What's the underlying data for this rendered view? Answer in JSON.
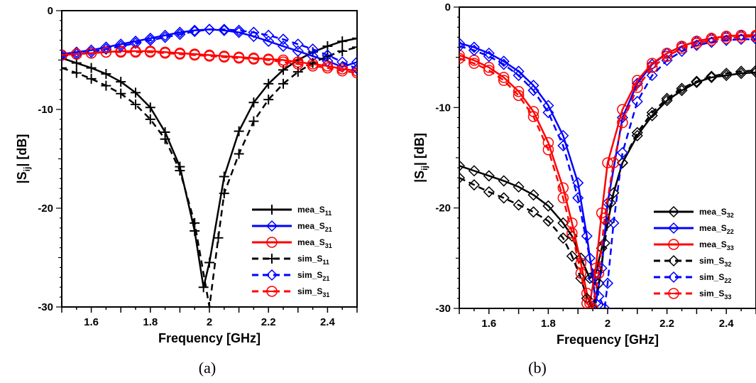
{
  "chart_data": [
    {
      "type": "line",
      "panel": "a",
      "xlabel": "Frequency [GHz]",
      "ylabel": "|S",
      "ylabel_sub": "ij",
      "ylabel_tail": "| [dB]",
      "xlim": [
        1.5,
        2.5
      ],
      "ylim": [
        -30,
        0
      ],
      "xticks": [
        1.6,
        1.8,
        2,
        2.2,
        2.4
      ],
      "xtick_labels": [
        "1.6",
        "1.8",
        "2",
        "2.2",
        "2.4"
      ],
      "yticks": [
        0,
        -10,
        -20,
        -30
      ],
      "ytick_labels": [
        "0",
        "-10",
        "-20",
        "-30"
      ],
      "grid": false,
      "legend_position": "bottom-right",
      "caption": "(a)",
      "series": [
        {
          "name": "mea_S",
          "sub": "11",
          "color": "#000000",
          "dash": "solid",
          "marker": "plus",
          "x": [
            1.5,
            1.55,
            1.6,
            1.65,
            1.7,
            1.75,
            1.8,
            1.85,
            1.9,
            1.95,
            1.98,
            2.0,
            2.05,
            2.1,
            2.15,
            2.2,
            2.25,
            2.3,
            2.35,
            2.4,
            2.45,
            2.5
          ],
          "y": [
            -4.8,
            -5.3,
            -5.8,
            -6.4,
            -7.2,
            -8.3,
            -9.8,
            -12.3,
            -15.8,
            -22.3,
            -28.0,
            -25.5,
            -16.8,
            -12.2,
            -9.3,
            -7.4,
            -6.0,
            -5.0,
            -4.2,
            -3.6,
            -3.1,
            -2.8
          ]
        },
        {
          "name": "mea_S",
          "sub": "21",
          "color": "#0000ff",
          "dash": "solid",
          "marker": "diamond",
          "x": [
            1.5,
            1.55,
            1.6,
            1.65,
            1.7,
            1.75,
            1.8,
            1.85,
            1.9,
            1.95,
            2.0,
            2.05,
            2.1,
            2.15,
            2.2,
            2.25,
            2.3,
            2.35,
            2.4,
            2.45,
            2.5
          ],
          "y": [
            -4.4,
            -4.2,
            -4.0,
            -3.7,
            -3.4,
            -3.1,
            -2.8,
            -2.5,
            -2.2,
            -2.0,
            -1.9,
            -2.0,
            -2.2,
            -2.6,
            -3.1,
            -3.6,
            -4.1,
            -4.6,
            -5.1,
            -5.7,
            -5.2
          ]
        },
        {
          "name": "mea_S",
          "sub": "31",
          "color": "#ff0000",
          "dash": "solid",
          "marker": "circle",
          "x": [
            1.5,
            1.55,
            1.6,
            1.65,
            1.7,
            1.75,
            1.8,
            1.85,
            1.9,
            1.95,
            2.0,
            2.05,
            2.1,
            2.15,
            2.2,
            2.25,
            2.3,
            2.35,
            2.4,
            2.45,
            2.5
          ],
          "y": [
            -4.5,
            -4.4,
            -4.3,
            -4.2,
            -4.1,
            -4.1,
            -4.1,
            -4.2,
            -4.3,
            -4.4,
            -4.5,
            -4.6,
            -4.7,
            -4.8,
            -4.9,
            -5.0,
            -5.2,
            -5.4,
            -5.6,
            -5.9,
            -6.1
          ]
        },
        {
          "name": "sim_S",
          "sub": "11",
          "color": "#000000",
          "dash": "dashed",
          "marker": "plus",
          "x": [
            1.5,
            1.55,
            1.6,
            1.65,
            1.7,
            1.75,
            1.8,
            1.85,
            1.9,
            1.95,
            2.0,
            2.03,
            2.05,
            2.1,
            2.15,
            2.2,
            2.25,
            2.3,
            2.35,
            2.4,
            2.45,
            2.5
          ],
          "y": [
            -5.8,
            -6.3,
            -6.9,
            -7.6,
            -8.4,
            -9.5,
            -11.0,
            -13.0,
            -16.2,
            -21.5,
            -30.0,
            -23.0,
            -18.5,
            -14.5,
            -11.2,
            -9.0,
            -7.4,
            -6.2,
            -5.3,
            -4.6,
            -4.1,
            -3.7
          ]
        },
        {
          "name": "sim_S",
          "sub": "21",
          "color": "#0000ff",
          "dash": "dashed",
          "marker": "diamond",
          "x": [
            1.5,
            1.55,
            1.6,
            1.65,
            1.7,
            1.75,
            1.8,
            1.85,
            1.9,
            1.95,
            2.0,
            2.05,
            2.1,
            2.15,
            2.2,
            2.25,
            2.3,
            2.35,
            2.4,
            2.45,
            2.5
          ],
          "y": [
            -4.6,
            -4.4,
            -4.2,
            -3.9,
            -3.6,
            -3.3,
            -3.0,
            -2.7,
            -2.4,
            -2.1,
            -1.9,
            -1.9,
            -2.0,
            -2.2,
            -2.5,
            -2.9,
            -3.4,
            -3.9,
            -4.5,
            -5.2,
            -5.9
          ]
        },
        {
          "name": "sim_S",
          "sub": "31",
          "color": "#ff0000",
          "dash": "dashed",
          "marker": "circle-line",
          "x": [
            1.5,
            1.55,
            1.6,
            1.65,
            1.7,
            1.75,
            1.8,
            1.85,
            1.9,
            1.95,
            2.0,
            2.05,
            2.1,
            2.15,
            2.2,
            2.25,
            2.3,
            2.35,
            2.4,
            2.45,
            2.5
          ],
          "y": [
            -4.5,
            -4.4,
            -4.3,
            -4.2,
            -4.2,
            -4.2,
            -4.2,
            -4.3,
            -4.4,
            -4.5,
            -4.6,
            -4.7,
            -4.8,
            -4.9,
            -5.0,
            -5.2,
            -5.4,
            -5.6,
            -5.8,
            -6.1,
            -6.3
          ]
        }
      ]
    },
    {
      "type": "line",
      "panel": "b",
      "xlabel": "Frequency [GHz]",
      "ylabel": "|S",
      "ylabel_sub": "ij",
      "ylabel_tail": "| [dB]",
      "xlim": [
        1.5,
        2.5
      ],
      "ylim": [
        -30,
        0
      ],
      "xticks": [
        1.6,
        1.8,
        2,
        2.2,
        2.4
      ],
      "xtick_labels": [
        "1.6",
        "1.8",
        "2",
        "2.2",
        "2.4"
      ],
      "yticks": [
        0,
        -10,
        -20,
        -30
      ],
      "ytick_labels": [
        "0",
        "-10",
        "-20",
        "-30"
      ],
      "grid": false,
      "legend_position": "bottom-right",
      "caption": "(b)",
      "series": [
        {
          "name": "mea_S",
          "sub": "32",
          "color": "#000000",
          "dash": "solid",
          "marker": "diamond",
          "x": [
            1.5,
            1.55,
            1.6,
            1.65,
            1.7,
            1.75,
            1.8,
            1.85,
            1.88,
            1.91,
            1.94,
            1.96,
            1.98,
            2.0,
            2.02,
            2.05,
            2.1,
            2.15,
            2.2,
            2.25,
            2.3,
            2.35,
            2.4,
            2.45,
            2.5
          ],
          "y": [
            -15.8,
            -16.3,
            -16.8,
            -17.3,
            -17.9,
            -18.7,
            -19.8,
            -21.5,
            -22.8,
            -25.0,
            -27.0,
            -26.5,
            -24.0,
            -21.5,
            -18.5,
            -15.5,
            -12.8,
            -10.8,
            -9.3,
            -8.3,
            -7.5,
            -7.0,
            -6.8,
            -6.6,
            -6.5
          ]
        },
        {
          "name": "mea_S",
          "sub": "22",
          "color": "#0000ff",
          "dash": "solid",
          "marker": "diamond",
          "x": [
            1.5,
            1.55,
            1.6,
            1.65,
            1.7,
            1.75,
            1.8,
            1.85,
            1.9,
            1.93,
            1.95,
            1.96,
            1.98,
            2.0,
            2.05,
            2.1,
            2.15,
            2.2,
            2.25,
            2.3,
            2.35,
            2.4,
            2.45,
            2.5
          ],
          "y": [
            -3.6,
            -4.0,
            -4.6,
            -5.4,
            -6.4,
            -7.8,
            -9.8,
            -12.8,
            -17.5,
            -22.8,
            -27.0,
            -29.5,
            -26.0,
            -19.5,
            -11.0,
            -7.6,
            -5.7,
            -4.6,
            -3.9,
            -3.4,
            -3.1,
            -2.9,
            -2.8,
            -2.8
          ]
        },
        {
          "name": "mea_S",
          "sub": "33",
          "color": "#ff0000",
          "dash": "solid",
          "marker": "circle",
          "x": [
            1.5,
            1.55,
            1.6,
            1.65,
            1.7,
            1.75,
            1.8,
            1.85,
            1.88,
            1.91,
            1.93,
            1.94,
            1.96,
            1.98,
            2.0,
            2.05,
            2.1,
            2.15,
            2.2,
            2.25,
            2.3,
            2.35,
            2.4,
            2.45,
            2.5
          ],
          "y": [
            -4.8,
            -5.3,
            -6.0,
            -7.0,
            -8.4,
            -10.4,
            -13.5,
            -18.0,
            -21.5,
            -25.5,
            -28.5,
            -29.5,
            -26.0,
            -20.5,
            -15.5,
            -10.2,
            -7.3,
            -5.6,
            -4.6,
            -3.9,
            -3.4,
            -3.1,
            -2.9,
            -2.8,
            -2.8
          ]
        },
        {
          "name": "sim_S",
          "sub": "32",
          "color": "#000000",
          "dash": "dashed",
          "marker": "diamond",
          "x": [
            1.5,
            1.55,
            1.6,
            1.65,
            1.7,
            1.75,
            1.8,
            1.85,
            1.88,
            1.91,
            1.93,
            1.95,
            1.97,
            1.99,
            2.01,
            2.05,
            2.1,
            2.15,
            2.2,
            2.25,
            2.3,
            2.35,
            2.4,
            2.45,
            2.5
          ],
          "y": [
            -17.0,
            -17.7,
            -18.4,
            -19.0,
            -19.7,
            -20.4,
            -21.3,
            -23.0,
            -24.8,
            -27.0,
            -29.0,
            -30.0,
            -27.5,
            -23.5,
            -19.5,
            -15.5,
            -12.5,
            -10.5,
            -9.1,
            -8.1,
            -7.4,
            -6.9,
            -6.6,
            -6.4,
            -6.3
          ]
        },
        {
          "name": "sim_S",
          "sub": "22",
          "color": "#0000ff",
          "dash": "dashed",
          "marker": "diamond",
          "x": [
            1.5,
            1.55,
            1.6,
            1.65,
            1.7,
            1.75,
            1.8,
            1.85,
            1.9,
            1.94,
            1.97,
            1.99,
            2.0,
            2.02,
            2.05,
            2.1,
            2.15,
            2.2,
            2.25,
            2.3,
            2.35,
            2.4,
            2.45,
            2.5
          ],
          "y": [
            -3.9,
            -4.3,
            -4.9,
            -5.7,
            -6.8,
            -8.3,
            -10.5,
            -13.8,
            -19.0,
            -25.0,
            -28.8,
            -30.0,
            -27.5,
            -21.5,
            -14.5,
            -9.4,
            -6.8,
            -5.3,
            -4.4,
            -3.8,
            -3.5,
            -3.3,
            -3.2,
            -3.2
          ]
        },
        {
          "name": "sim_S",
          "sub": "33",
          "color": "#ff0000",
          "dash": "dashed",
          "marker": "circle-line",
          "x": [
            1.5,
            1.55,
            1.6,
            1.65,
            1.7,
            1.75,
            1.8,
            1.85,
            1.88,
            1.91,
            1.93,
            1.95,
            1.97,
            1.99,
            2.02,
            2.05,
            2.1,
            2.15,
            2.2,
            2.25,
            2.3,
            2.35,
            2.4,
            2.45,
            2.5
          ],
          "y": [
            -5.1,
            -5.6,
            -6.3,
            -7.3,
            -8.8,
            -10.9,
            -14.2,
            -19.0,
            -22.5,
            -26.5,
            -29.5,
            -30.0,
            -26.5,
            -21.0,
            -15.5,
            -11.5,
            -8.0,
            -6.0,
            -4.9,
            -4.1,
            -3.6,
            -3.3,
            -3.1,
            -3.0,
            -2.9
          ]
        }
      ]
    }
  ]
}
